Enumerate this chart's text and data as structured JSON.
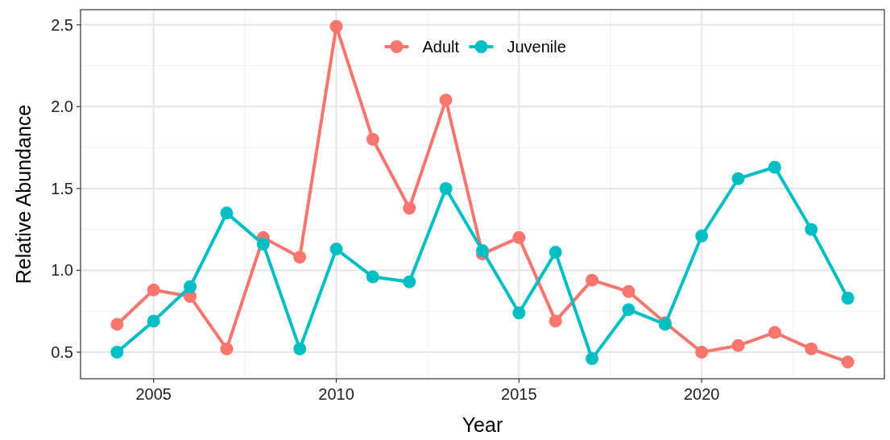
{
  "chart_data": {
    "type": "line",
    "xlabel": "Year",
    "ylabel": "Relative Abundance",
    "x": [
      2004,
      2005,
      2006,
      2007,
      2008,
      2009,
      2010,
      2011,
      2012,
      2013,
      2014,
      2015,
      2016,
      2017,
      2018,
      2019,
      2020,
      2021,
      2022,
      2023,
      2024
    ],
    "series": [
      {
        "name": "Adult",
        "color": "#f8766d",
        "values": [
          0.67,
          0.88,
          0.84,
          0.52,
          1.2,
          1.08,
          2.49,
          1.8,
          1.38,
          2.04,
          1.1,
          1.2,
          0.69,
          0.94,
          0.87,
          0.68,
          0.5,
          0.54,
          0.62,
          0.52,
          0.44
        ]
      },
      {
        "name": "Juvenile",
        "color": "#00bfc4",
        "values": [
          0.5,
          0.69,
          0.9,
          1.35,
          1.16,
          0.52,
          1.13,
          0.96,
          0.93,
          1.5,
          1.12,
          0.74,
          1.11,
          0.46,
          0.76,
          0.67,
          1.21,
          1.56,
          1.63,
          1.25,
          0.83
        ]
      }
    ],
    "xlim": [
      2003,
      2025
    ],
    "xticks": [
      2005,
      2010,
      2015,
      2020
    ],
    "ylim": [
      0.3375,
      2.5925
    ],
    "yticks": [
      {
        "value": 0.5,
        "label": "0.5"
      },
      {
        "value": 1,
        "label": "1.0"
      },
      {
        "value": 1.5,
        "label": "1.5"
      },
      {
        "value": 2,
        "label": "2.0"
      },
      {
        "value": 2.5,
        "label": "2.5"
      }
    ],
    "grid": true,
    "legend": "top",
    "marker": "circle",
    "line_style": "solid"
  }
}
